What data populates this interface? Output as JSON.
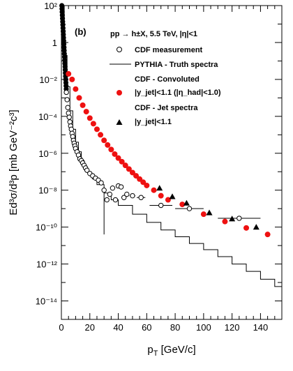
{
  "chart_data": {
    "type": "scatter",
    "panel_label": "(b)",
    "xlabel": "p",
    "xlabel_sub": "T",
    "xlabel_units": " [GeV/c]",
    "ylabel": "Ed³σ/d³p [mb GeV⁻²c³]",
    "xlim": [
      0,
      155
    ],
    "ylim": [
      1e-15,
      100.0
    ],
    "yscale": "log",
    "x_ticks": [
      "0",
      "20",
      "40",
      "60",
      "80",
      "100",
      "120",
      "140"
    ],
    "y_ticks": [
      "10⁻¹⁴",
      "10⁻¹²",
      "10⁻¹⁰",
      "10⁻⁸",
      "10⁻⁶",
      "10⁻⁴",
      "10⁻²",
      "1",
      "10²"
    ],
    "legend": {
      "heading": "pp → h±X, 5.5 TeV, |η|<1",
      "entries": [
        {
          "label": "CDF measurement",
          "marker": "open-circle"
        },
        {
          "label": "PYTHIA - Truth spectra",
          "marker": "line"
        },
        {
          "label": "CDF - Convoluted",
          "label2": "|y_jet|<1.1 (|η_had|<1.0)",
          "marker": "filled-circle"
        },
        {
          "label": "CDF - Jet spectra",
          "label2": "|y_jet|<1.1",
          "marker": "filled-triangle"
        }
      ]
    },
    "colors": {
      "convoluted": "#ee1111",
      "measurement": "#000000",
      "truth": "#000000",
      "jet": "#000000"
    },
    "series": [
      {
        "name": "CDF measurement",
        "points": [
          [
            3.5,
            0.002
          ],
          [
            4,
            0.0008
          ],
          [
            4.5,
            0.0003
          ],
          [
            5,
            0.00015
          ],
          [
            5.5,
            9e-05
          ],
          [
            6,
            5e-05
          ],
          [
            6.5,
            3e-05
          ],
          [
            7,
            2e-05
          ],
          [
            7.5,
            1.2e-05
          ],
          [
            8,
            8e-06
          ],
          [
            8.5,
            5e-06
          ],
          [
            9,
            3.5e-06
          ],
          [
            9.5,
            2.5e-06
          ],
          [
            10,
            1.8e-06
          ],
          [
            11,
            1.2e-06
          ],
          [
            12,
            8e-07
          ],
          [
            13,
            5e-07
          ],
          [
            14,
            4e-07
          ],
          [
            15,
            3e-07
          ],
          [
            16,
            2.2e-07
          ],
          [
            17,
            1.6e-07
          ],
          [
            18,
            1.2e-07
          ],
          [
            20,
            8e-08
          ],
          [
            22,
            6e-08
          ],
          [
            24,
            4.5e-08
          ],
          [
            26,
            3.5e-08
          ],
          [
            28,
            2.5e-08
          ],
          [
            30,
            1e-08
          ],
          [
            32,
            3e-09
          ],
          [
            34,
            6e-09
          ],
          [
            36,
            1.3e-08
          ],
          [
            38,
            3e-09
          ],
          [
            40,
            1.7e-08
          ],
          [
            42,
            1.5e-08
          ],
          [
            44,
            4e-09
          ],
          [
            46,
            6e-09
          ],
          [
            50,
            5e-09
          ],
          [
            56,
            4e-09
          ],
          [
            70,
            1.5e-09
          ],
          [
            90,
            1e-09
          ],
          [
            125,
            3e-10
          ]
        ],
        "xerr": [
          [
            50,
            2
          ],
          [
            56,
            3
          ],
          [
            70,
            8
          ],
          [
            90,
            10
          ],
          [
            125,
            15
          ]
        ]
      },
      {
        "name": "PYTHIA - Truth spectra",
        "steps": [
          [
            0,
            100.0
          ],
          [
            2,
            0.2
          ],
          [
            4,
            0.004
          ],
          [
            6,
            0.0002
          ],
          [
            8,
            2e-05
          ],
          [
            10,
            4e-06
          ],
          [
            12,
            1.2e-06
          ],
          [
            14,
            4e-07
          ],
          [
            16,
            2e-07
          ],
          [
            18,
            1e-07
          ],
          [
            20,
            6e-08
          ],
          [
            22,
            4e-08
          ],
          [
            25,
            2e-08
          ],
          [
            30,
            7e-09
          ],
          [
            35,
            3e-09
          ],
          [
            40,
            1.5e-09
          ],
          [
            50,
            5e-10
          ],
          [
            60,
            1.8e-10
          ],
          [
            70,
            7e-11
          ],
          [
            80,
            3e-11
          ],
          [
            90,
            1.3e-11
          ],
          [
            100,
            6e-12
          ],
          [
            110,
            2.5e-12
          ],
          [
            120,
            1e-12
          ],
          [
            130,
            4e-13
          ],
          [
            140,
            1.5e-13
          ],
          [
            150,
            6e-14
          ]
        ]
      },
      {
        "name": "CDF - Convoluted",
        "points": [
          [
            5,
            0.02
          ],
          [
            7.5,
            0.01
          ],
          [
            10,
            0.003
          ],
          [
            12.5,
            0.001
          ],
          [
            15,
            0.0004
          ],
          [
            17.5,
            0.00018
          ],
          [
            20,
            8e-05
          ],
          [
            22.5,
            4e-05
          ],
          [
            25,
            2e-05
          ],
          [
            27.5,
            1e-05
          ],
          [
            30,
            5e-06
          ],
          [
            32.5,
            2.8e-06
          ],
          [
            35,
            1.6e-06
          ],
          [
            37.5,
            9e-07
          ],
          [
            40,
            5.5e-07
          ],
          [
            42.5,
            3.5e-07
          ],
          [
            45,
            2.2e-07
          ],
          [
            47.5,
            1.4e-07
          ],
          [
            50,
            9e-08
          ],
          [
            52.5,
            6e-08
          ],
          [
            55,
            4e-08
          ],
          [
            57.5,
            2.7e-08
          ],
          [
            60,
            1.8e-08
          ],
          [
            65,
            1e-08
          ],
          [
            70,
            5e-09
          ],
          [
            75,
            3e-09
          ],
          [
            85,
            1.7e-09
          ],
          [
            100,
            5e-10
          ],
          [
            115,
            2e-10
          ],
          [
            130,
            9e-11
          ],
          [
            145,
            4e-11
          ]
        ]
      },
      {
        "name": "CDF - Jet spectra",
        "points": [
          [
            69,
            1.3e-08
          ],
          [
            78,
            4.5e-09
          ],
          [
            88,
            2e-09
          ],
          [
            104,
            6e-10
          ],
          [
            120,
            2.8e-10
          ],
          [
            137,
            1e-10
          ]
        ]
      }
    ]
  }
}
